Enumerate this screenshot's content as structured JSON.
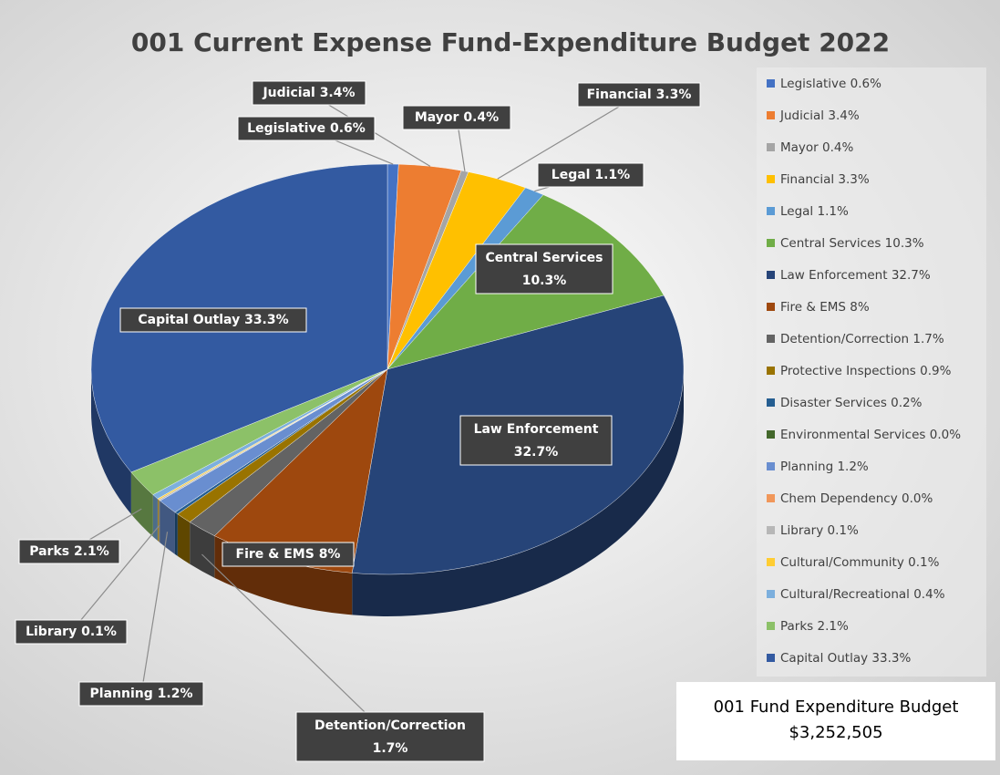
{
  "chart_data": {
    "type": "pie",
    "title": "001 Current Expense Fund-Expenditure Budget 2022",
    "categories": [
      "Legislative",
      "Judicial",
      "Mayor",
      "Financial",
      "Legal",
      "Central Services",
      "Law Enforcement",
      "Fire & EMS",
      "Detention/Correction",
      "Protective Inspections",
      "Disaster Services",
      "Environmental Services",
      "Planning",
      "Chem Dependency",
      "Library",
      "Cultural/Community",
      "Cultural/Recreational",
      "Parks",
      "Capital Outlay"
    ],
    "values": [
      0.6,
      3.4,
      0.4,
      3.3,
      1.1,
      10.3,
      32.7,
      8,
      1.7,
      0.9,
      0.2,
      0,
      1.2,
      0,
      0.1,
      0.1,
      0.4,
      2.1,
      33.3
    ],
    "value_labels": [
      "0.6%",
      "3.4%",
      "0.4%",
      "3.3%",
      "1.1%",
      "10.3%",
      "32.7%",
      "8%",
      "1.7%",
      "0.9%",
      "0.2%",
      "0.0%",
      "1.2%",
      "0.0%",
      "0.1%",
      "0.1%",
      "0.4%",
      "2.1%",
      "33.3%"
    ],
    "colors": [
      "#4472c4",
      "#ed7d31",
      "#a5a5a5",
      "#ffc000",
      "#5b9bd5",
      "#70ad47",
      "#264478",
      "#9e480e",
      "#636363",
      "#997300",
      "#255e91",
      "#43682b",
      "#698ed0",
      "#f1975a",
      "#b7b7b7",
      "#ffcd33",
      "#7cafdd",
      "#8cc168",
      "#335aa1"
    ],
    "legend": "right",
    "annotations": [
      "001 Fund Expenditure Budget",
      "$3,252,505"
    ]
  }
}
